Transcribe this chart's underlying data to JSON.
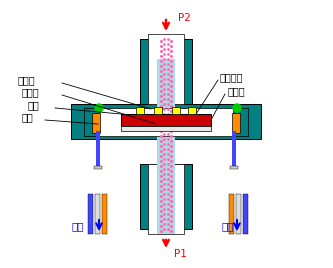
{
  "bg_color": "#ffffff",
  "teal": "#008080",
  "light_blue": "#add8e6",
  "red_part": "#cc0000",
  "yellow": "#ffff00",
  "green_dot": "#00cc00",
  "orange": "#ff8c00",
  "blue_wire": "#4444ff",
  "pink_dot_color": "#ff69b4",
  "white": "#ffffff",
  "arrow_red": "#ff0000",
  "arrow_blue": "#0000ff",
  "text_color": "#000000",
  "labels": {
    "low_pressure": "低压腔",
    "high_pressure": "高压腔",
    "silicon_cup": "硅杯",
    "lead": "引线",
    "diffusion_resistor": "扩散电阻",
    "silicon_membrane": "硅膜片",
    "current_left": "电流",
    "current_right": "电流",
    "P1": "P1",
    "P2": "P2"
  }
}
